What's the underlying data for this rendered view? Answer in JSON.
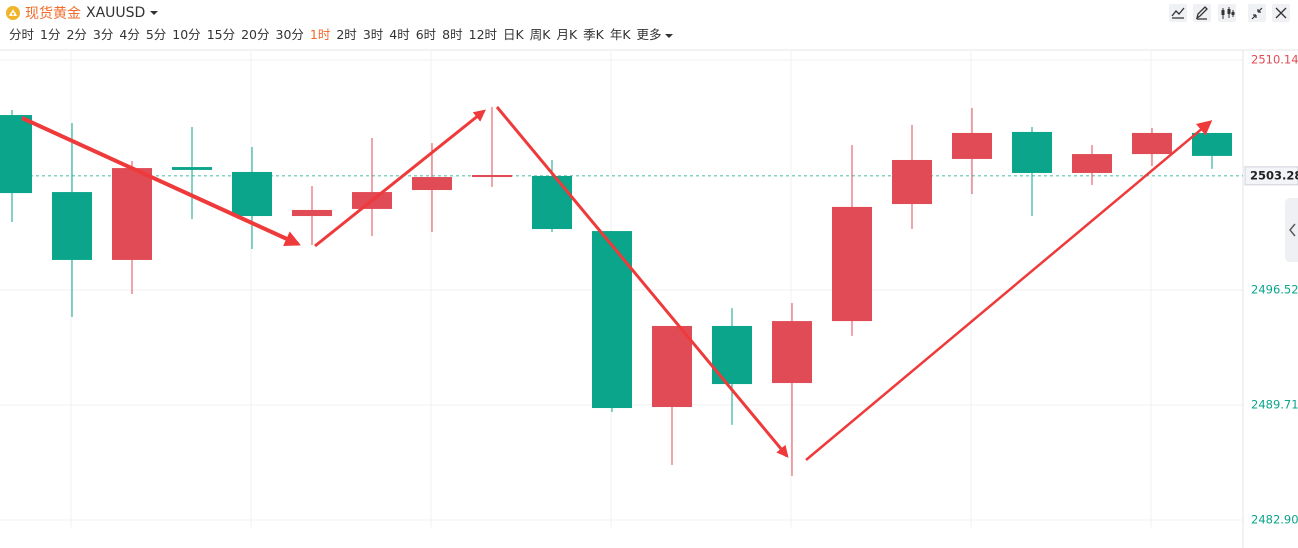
{
  "header": {
    "title": "现货黄金",
    "symbol": "XAUUSD",
    "intervals": [
      "分时",
      "1分",
      "2分",
      "3分",
      "4分",
      "5分",
      "10分",
      "15分",
      "20分",
      "30分",
      "1时",
      "2时",
      "3时",
      "4时",
      "6时",
      "8时",
      "12时",
      "日K",
      "周K",
      "月K",
      "季K",
      "年K",
      "更多"
    ]
  },
  "chart_data": {
    "type": "candlestick",
    "open": [
      2506.88,
      2502.32,
      2498.3,
      2503.8,
      2503.51,
      2500.9,
      2501.32,
      2502.44,
      2503.21,
      2503.27,
      2500.01,
      2489.59,
      2494.39,
      2491.01,
      2494.68,
      2501.61,
      2504.28,
      2505.88,
      2503.45,
      2504.57,
      2505.82
    ],
    "high": [
      2507.18,
      2506.41,
      2504.16,
      2506.17,
      2504.99,
      2502.68,
      2505.52,
      2505.22,
      2507.36,
      2504.22,
      2500.01,
      2494.39,
      2495.45,
      2495.75,
      2505.11,
      2506.29,
      2507.3,
      2506.17,
      2505.11,
      2506.11,
      2505.82
    ],
    "low": [
      2500.55,
      2494.92,
      2496.28,
      2500.72,
      2498.95,
      2499.18,
      2499.72,
      2499.95,
      2502.62,
      2499.95,
      2489.3,
      2486.16,
      2488.53,
      2485.51,
      2493.8,
      2500.13,
      2502.2,
      2500.9,
      2502.74,
      2503.86,
      2503.69
    ],
    "close": [
      2502.26,
      2498.3,
      2503.74,
      2503.63,
      2500.9,
      2501.26,
      2502.32,
      2503.21,
      2503.33,
      2500.13,
      2489.53,
      2494.39,
      2490.95,
      2494.68,
      2501.44,
      2504.22,
      2505.82,
      2503.45,
      2504.57,
      2505.82,
      2504.46
    ],
    "up_color": "#e04b56",
    "down_color": "#0aa58a",
    "ylim": [
      2482.9,
      2510.14
    ],
    "yticks": [
      {
        "value": 2482.9,
        "label": "2482.90"
      },
      2489.71,
      2496.52,
      2510.14
    ],
    "current_price": 2503.28,
    "grid": true
  }
}
